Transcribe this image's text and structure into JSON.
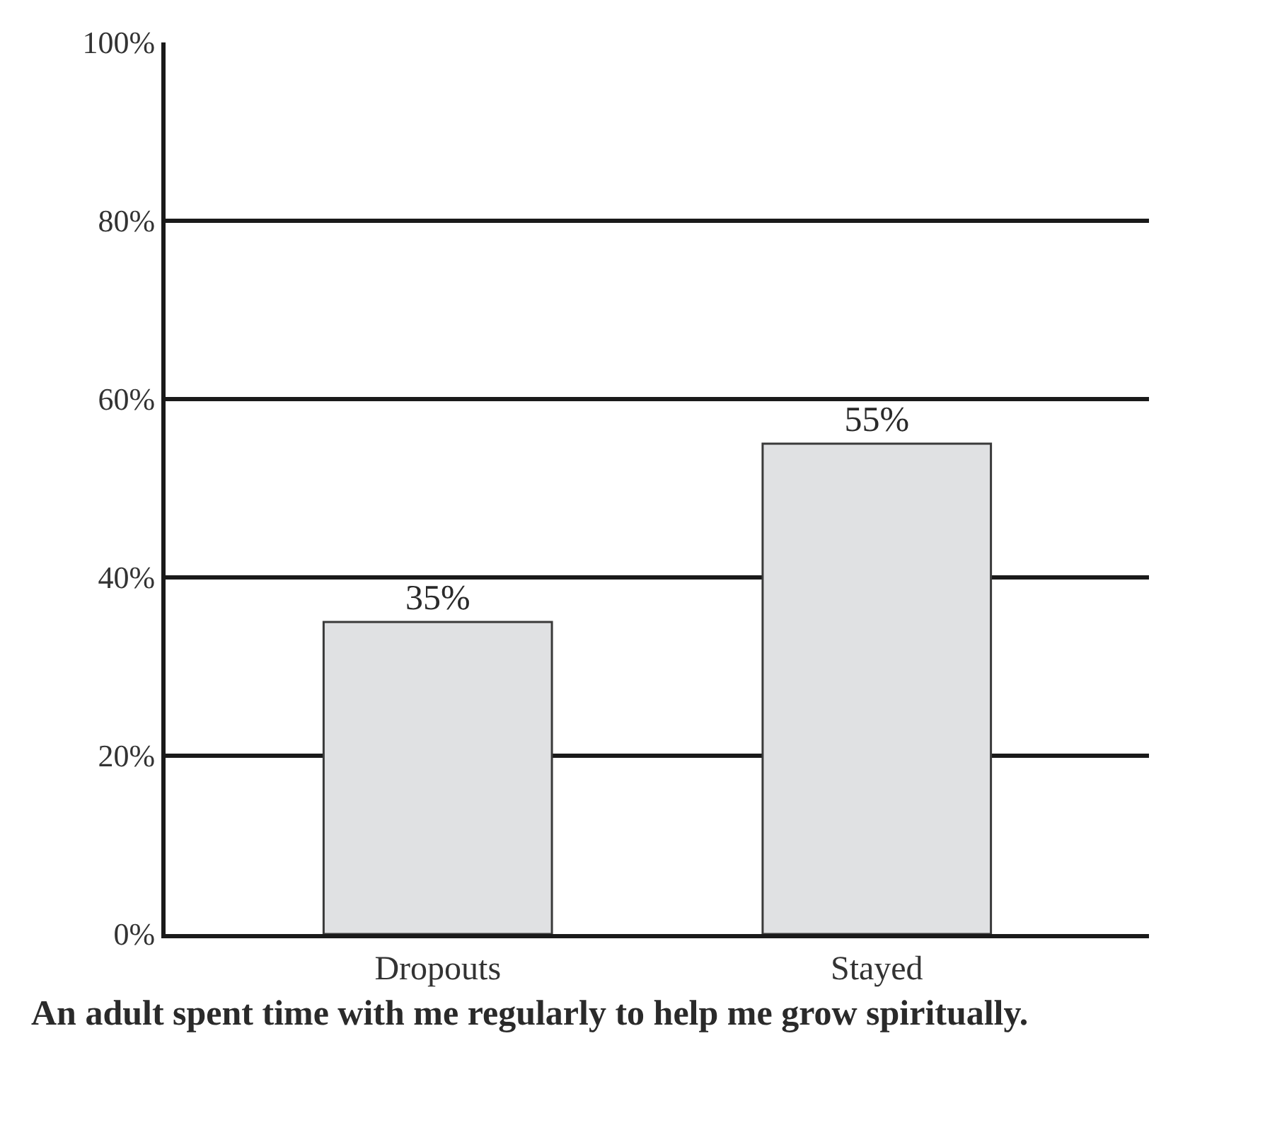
{
  "chart_data": {
    "type": "bar",
    "categories": [
      "Dropouts",
      "Stayed"
    ],
    "values": [
      35,
      55
    ],
    "color": "#e0e1e3",
    "value_labels": [
      "35%",
      "55%"
    ],
    "ylim": [
      0,
      100
    ],
    "yticks": [
      {
        "value": 0,
        "label": "0%"
      },
      {
        "value": 20,
        "label": "20%"
      },
      {
        "value": 40,
        "label": "40%"
      },
      {
        "value": 60,
        "label": "60%"
      },
      {
        "value": 80,
        "label": "80%"
      },
      {
        "value": 100,
        "label": "100%"
      }
    ],
    "grid": "y",
    "legend": false,
    "annotations": [
      "An adult spent time with me regularly to help me grow spiritually."
    ]
  }
}
